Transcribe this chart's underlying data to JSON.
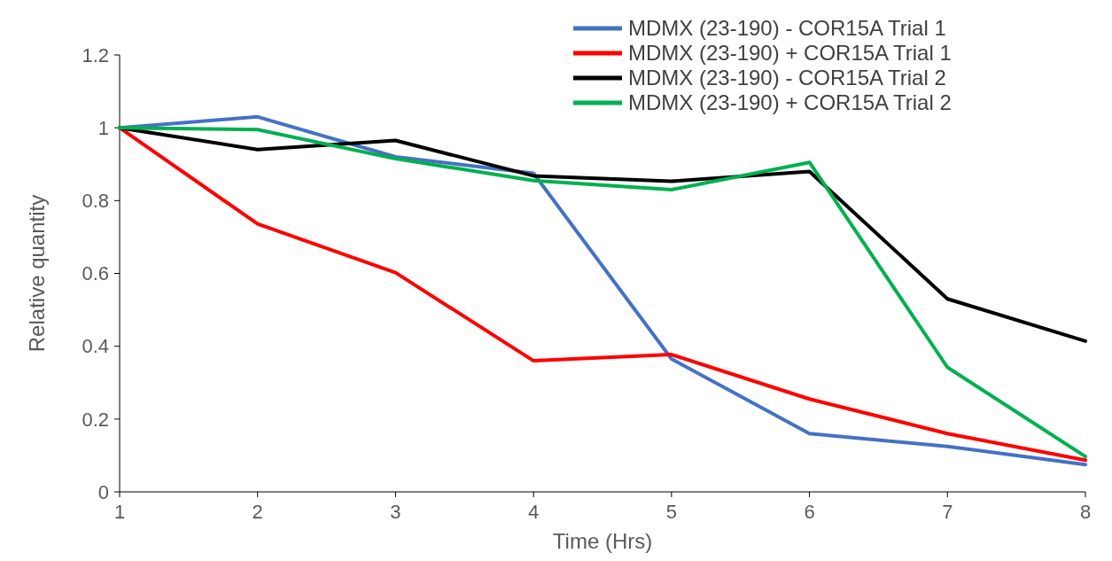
{
  "chart_data": {
    "type": "line",
    "xlabel": "Time (Hrs)",
    "ylabel": "Relative quantity",
    "x": [
      1,
      2,
      3,
      4,
      5,
      6,
      7,
      8
    ],
    "xlim": [
      1,
      8
    ],
    "xticks": [
      1,
      2,
      3,
      4,
      5,
      6,
      7,
      8
    ],
    "ylim": [
      0,
      1.2
    ],
    "yticks": [
      0,
      0.2,
      0.4,
      0.6,
      0.8,
      1,
      1.2
    ],
    "grid": false,
    "legend": "top right",
    "marker": "none",
    "line_style": "solid",
    "series": [
      {
        "name": "MDMX (23-190) - COR15A Trial 1",
        "color": "#4472c4",
        "values": [
          1,
          1.03,
          0.92,
          0.875,
          0.365,
          0.16,
          0.125,
          0.075
        ]
      },
      {
        "name": "MDMX (23-190) + COR15A Trial 1",
        "color": "#ff0000",
        "values": [
          1,
          0.736,
          0.602,
          0.36,
          0.377,
          0.255,
          0.16,
          0.087
        ]
      },
      {
        "name": "MDMX (23-190) - COR15A Trial 2",
        "color": "#000000",
        "values": [
          1,
          0.94,
          0.965,
          0.868,
          0.853,
          0.88,
          0.53,
          0.414
        ]
      },
      {
        "name": "MDMX (23-190) + COR15A Trial 2",
        "color": "#00b050",
        "values": [
          1,
          0.995,
          0.915,
          0.855,
          0.83,
          0.905,
          0.342,
          0.097
        ]
      }
    ]
  }
}
